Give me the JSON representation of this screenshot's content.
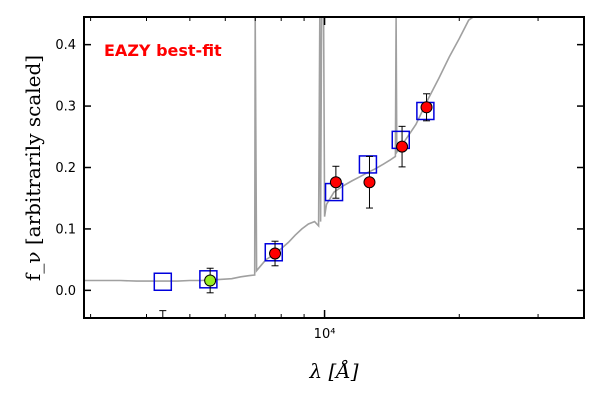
{
  "chart_data": {
    "type": "scatter",
    "annotation": {
      "text": "EAZY best-fit",
      "color": "#ff0000"
    },
    "xlabel": "λ [Å]",
    "ylabel": "f_ν [arbitrarily scaled]",
    "xscale": "log",
    "xlim": [
      2900,
      38000
    ],
    "ylim": [
      -0.045,
      0.445
    ],
    "grid": false,
    "yticks": [
      0.0,
      0.1,
      0.2,
      0.3,
      0.4
    ],
    "ytick_labels": [
      "0.0",
      "0.1",
      "0.2",
      "0.3",
      "0.4"
    ],
    "xtick_major": [
      10000
    ],
    "xtick_major_labels": [
      "10⁴"
    ],
    "xtick_minor": [
      3000,
      4000,
      5000,
      6000,
      7000,
      8000,
      9000,
      20000,
      30000
    ],
    "colors": {
      "sed_line": "#a0a0a0",
      "model_box": "#0000dd",
      "detection_point": "#ff0000",
      "upper_point": "#99ee22",
      "errorbar": "#000000"
    },
    "series": [
      {
        "role": "model-photometry",
        "marker": "open-square",
        "x": [
          4350,
          5500,
          7700,
          10500,
          12500,
          14800,
          16800
        ],
        "y": [
          0.014,
          0.018,
          0.062,
          0.16,
          0.205,
          0.245,
          0.292
        ]
      },
      {
        "role": "observed-detections",
        "marker": "red-circle",
        "points": [
          {
            "x": 7750,
            "y": 0.06,
            "err": 0.02
          },
          {
            "x": 10600,
            "y": 0.176,
            "err": 0.026
          },
          {
            "x": 12600,
            "y": 0.176,
            "err": 0.042
          },
          {
            "x": 14900,
            "y": 0.234,
            "err": 0.033
          },
          {
            "x": 16900,
            "y": 0.298,
            "err": 0.022
          }
        ]
      },
      {
        "role": "observed-low",
        "marker": "green-circle",
        "points": [
          {
            "x": 5550,
            "y": 0.016,
            "err": 0.02
          }
        ]
      },
      {
        "role": "upper-limit-stub",
        "points": [
          {
            "x": 4350,
            "y_top": -0.033,
            "y_bottom": -0.055
          }
        ]
      }
    ],
    "sed_curve": {
      "x": [
        2900,
        3200,
        3500,
        3800,
        4100,
        4400,
        4700,
        5000,
        5300,
        5600,
        5900,
        6200,
        6500,
        6800,
        6980,
        7000,
        7050,
        7200,
        7400,
        7700,
        8000,
        8300,
        8600,
        8900,
        9200,
        9500,
        9700,
        9760,
        9800,
        9850,
        9950,
        10000,
        10050,
        10100,
        10500,
        11000,
        11500,
        12000,
        12500,
        13000,
        13500,
        14000,
        14400,
        14450,
        14500,
        15000,
        16000,
        17000,
        18000,
        19000,
        20000,
        21000,
        21500
      ],
      "y": [
        0.016,
        0.016,
        0.016,
        0.015,
        0.015,
        0.015,
        0.015,
        0.016,
        0.016,
        0.017,
        0.018,
        0.019,
        0.022,
        0.024,
        0.025,
        0.445,
        0.032,
        0.04,
        0.05,
        0.058,
        0.068,
        0.078,
        0.09,
        0.1,
        0.108,
        0.112,
        0.105,
        0.445,
        0.112,
        0.445,
        0.445,
        0.12,
        0.13,
        0.14,
        0.16,
        0.17,
        0.178,
        0.185,
        0.192,
        0.198,
        0.205,
        0.212,
        0.218,
        0.445,
        0.225,
        0.24,
        0.27,
        0.31,
        0.345,
        0.38,
        0.41,
        0.44,
        0.445
      ]
    }
  }
}
